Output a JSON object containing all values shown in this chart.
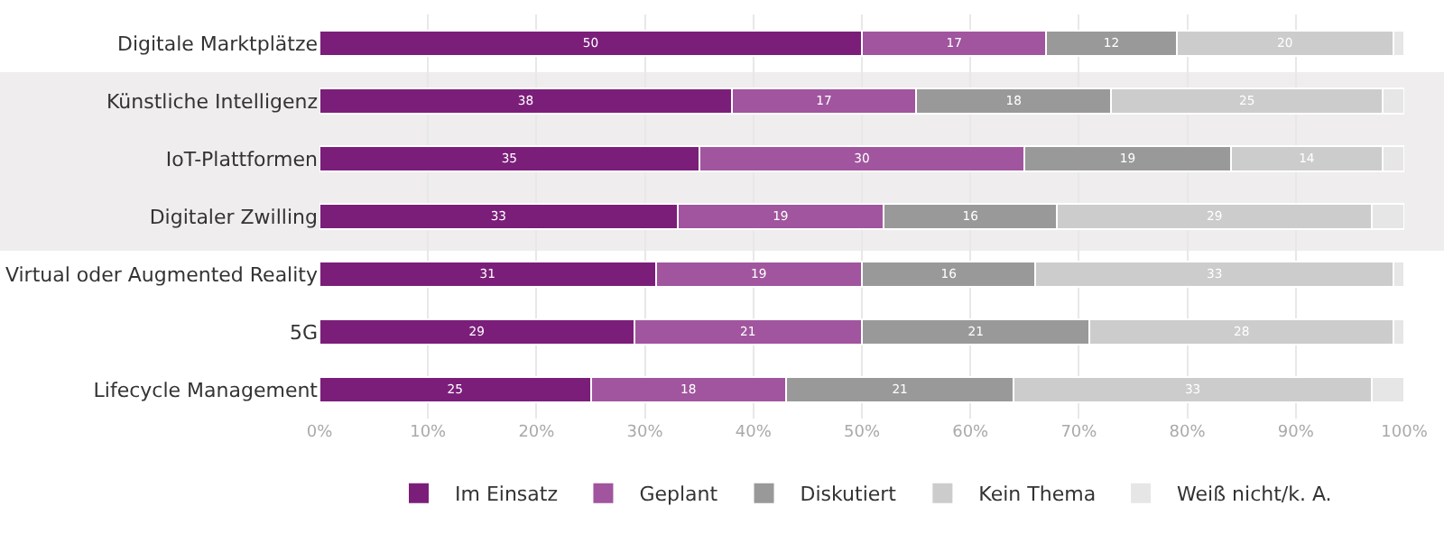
{
  "chart_data": {
    "type": "bar",
    "orientation": "horizontal",
    "stacked": true,
    "categories": [
      "Digitale Marktplätze",
      "Künstliche Intelligenz",
      "IoT-Plattformen",
      "Digitaler Zwilling",
      "Virtual oder Augmented Reality",
      "5G",
      "Lifecycle Management"
    ],
    "series": [
      {
        "name": "Im Einsatz",
        "color": "#7b1e7a",
        "values": [
          50,
          38,
          35,
          33,
          31,
          29,
          25
        ],
        "value_labels": [
          "50",
          "38",
          "35",
          "33",
          "31",
          "29",
          "25"
        ]
      },
      {
        "name": "Geplant",
        "color": "#a0559e",
        "values": [
          17,
          17,
          30,
          19,
          19,
          21,
          18
        ],
        "value_labels": [
          "17",
          "17",
          "30",
          "19",
          "19",
          "21",
          "18"
        ]
      },
      {
        "name": "Diskutiert",
        "color": "#999999",
        "values": [
          12,
          18,
          19,
          16,
          16,
          21,
          21
        ],
        "value_labels": [
          "12",
          "18",
          "19",
          "16",
          "16",
          "21",
          "21"
        ]
      },
      {
        "name": "Kein Thema",
        "color": "#cccccc",
        "values": [
          20,
          25,
          14,
          29,
          33,
          28,
          33
        ],
        "value_labels": [
          "20",
          "25",
          "14",
          "29",
          "33",
          "28",
          "33"
        ]
      },
      {
        "name": "Weiß nicht/k. A.",
        "color": "#e6e6e6",
        "values": [
          1,
          2,
          2,
          3,
          1,
          1,
          3
        ],
        "value_labels": [
          null,
          null,
          null,
          null,
          null,
          null,
          null
        ]
      }
    ],
    "xlim": [
      0,
      100
    ],
    "xticks": [
      {
        "value": 0,
        "label": "0%"
      },
      {
        "value": 10,
        "label": "10%"
      },
      {
        "value": 20,
        "label": "20%"
      },
      {
        "value": 30,
        "label": "30%"
      },
      {
        "value": 40,
        "label": "40%"
      },
      {
        "value": 50,
        "label": "50%"
      },
      {
        "value": 60,
        "label": "60%"
      },
      {
        "value": 70,
        "label": "70%"
      },
      {
        "value": 80,
        "label": "80%"
      },
      {
        "value": 90,
        "label": "90%"
      },
      {
        "value": 100,
        "label": "100%"
      }
    ],
    "grid": "x",
    "legend": "bottom"
  }
}
